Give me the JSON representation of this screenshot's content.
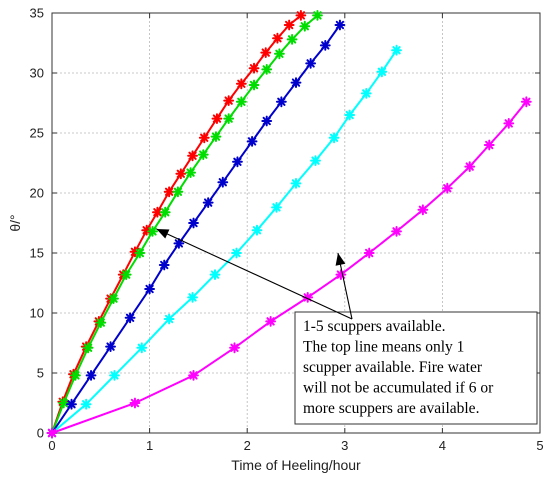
{
  "chart_data": {
    "type": "line",
    "xlabel": "Time of Heeling/hour",
    "ylabel": "θ/°",
    "xlim": [
      0,
      5
    ],
    "ylim": [
      0,
      35
    ],
    "xticks": [
      "0",
      "1",
      "2",
      "3",
      "4",
      "5"
    ],
    "yticks": [
      "0",
      "5",
      "10",
      "15",
      "20",
      "25",
      "30",
      "35"
    ],
    "grid": true,
    "marker": "asterisk",
    "series": [
      {
        "color": "#ff0000",
        "x": [
          0,
          0.11,
          0.22,
          0.35,
          0.48,
          0.6,
          0.73,
          0.85,
          0.97,
          1.08,
          1.2,
          1.32,
          1.44,
          1.56,
          1.69,
          1.81,
          1.94,
          2.07,
          2.19,
          2.31,
          2.43,
          2.55
        ],
        "y": [
          0,
          2.6,
          4.9,
          7.2,
          9.3,
          11.2,
          13.2,
          15.1,
          16.9,
          18.4,
          20.1,
          21.6,
          23.1,
          24.6,
          26.2,
          27.7,
          29.1,
          30.4,
          31.7,
          32.9,
          34.0,
          34.8
        ]
      },
      {
        "color": "#00dd00",
        "x": [
          0,
          0.12,
          0.24,
          0.37,
          0.5,
          0.63,
          0.76,
          0.9,
          1.03,
          1.16,
          1.29,
          1.42,
          1.55,
          1.68,
          1.81,
          1.94,
          2.07,
          2.2,
          2.33,
          2.46,
          2.59,
          2.72
        ],
        "y": [
          0,
          2.5,
          4.8,
          7.1,
          9.2,
          11.2,
          13.2,
          15.0,
          16.8,
          18.4,
          20.1,
          21.7,
          23.2,
          24.7,
          26.2,
          27.6,
          29.0,
          30.3,
          31.6,
          32.8,
          33.9,
          34.8
        ]
      },
      {
        "color": "#0000cc",
        "x": [
          0,
          0.2,
          0.4,
          0.6,
          0.8,
          1.0,
          1.15,
          1.3,
          1.45,
          1.6,
          1.75,
          1.9,
          2.05,
          2.2,
          2.35,
          2.5,
          2.65,
          2.8,
          2.95
        ],
        "y": [
          0,
          2.4,
          4.8,
          7.2,
          9.6,
          12.0,
          14.0,
          15.8,
          17.5,
          19.2,
          20.9,
          22.6,
          24.3,
          26.0,
          27.6,
          29.2,
          30.8,
          32.3,
          34.0
        ]
      },
      {
        "color": "#00ffff",
        "x": [
          0,
          0.35,
          0.64,
          0.92,
          1.2,
          1.44,
          1.67,
          1.89,
          2.1,
          2.3,
          2.5,
          2.7,
          2.89,
          3.05,
          3.22,
          3.38,
          3.53
        ],
        "y": [
          0,
          2.4,
          4.8,
          7.1,
          9.5,
          11.3,
          13.2,
          15.0,
          16.9,
          18.8,
          20.8,
          22.7,
          24.6,
          26.5,
          28.3,
          30.1,
          31.9
        ]
      },
      {
        "color": "#ff00ff",
        "x": [
          0,
          0.85,
          1.45,
          1.87,
          2.24,
          2.62,
          2.96,
          3.25,
          3.53,
          3.8,
          4.05,
          4.28,
          4.48,
          4.68,
          4.86
        ],
        "y": [
          0,
          2.5,
          4.8,
          7.1,
          9.3,
          11.3,
          13.2,
          15.0,
          16.8,
          18.6,
          20.4,
          22.2,
          24.0,
          25.8,
          27.6
        ]
      }
    ],
    "annotation": {
      "lines": [
        "1-5 scuppers available.",
        "The top line means only 1",
        "scupper available. Fire water",
        "will not be accumulated if 6 or",
        "more scuppers are available."
      ],
      "arrow_targets": [
        {
          "x": 1.07,
          "y": 17.0
        },
        {
          "x": 2.93,
          "y": 15.0
        }
      ]
    }
  }
}
